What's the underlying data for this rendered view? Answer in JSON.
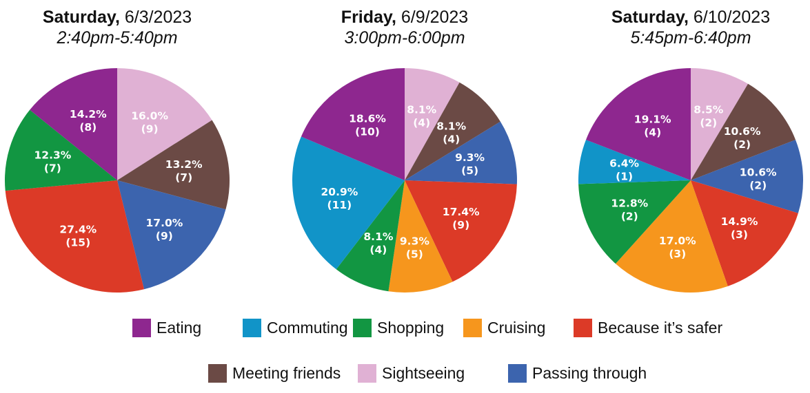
{
  "categories": [
    {
      "key": "eating",
      "name": "Eating",
      "color": "#8E278F"
    },
    {
      "key": "commuting",
      "name": "Commuting",
      "color": "#1194C8"
    },
    {
      "key": "shopping",
      "name": "Shopping",
      "color": "#129642"
    },
    {
      "key": "cruising",
      "name": "Cruising",
      "color": "#F6961D"
    },
    {
      "key": "safer",
      "name": "Because it’s safer",
      "color": "#DC3A27"
    },
    {
      "key": "meeting",
      "name": "Meeting friends",
      "color": "#6B4A45"
    },
    {
      "key": "sightseeing",
      "name": "Sightseeing",
      "color": "#E0B1D4"
    },
    {
      "key": "passing",
      "name": "Passing through",
      "color": "#3C64AE"
    }
  ],
  "chart_data": [
    {
      "type": "pie",
      "title_day": "Saturday,",
      "title_date": " 6/3/2023",
      "subtitle": "2:40pm-5:40pm",
      "slices": [
        {
          "category": "sightseeing",
          "percent": "16.0%",
          "count": "(9)",
          "value": 9
        },
        {
          "category": "meeting",
          "percent": "13.2%",
          "count": "(7)",
          "value": 7
        },
        {
          "category": "passing",
          "percent": "17.0%",
          "count": "(9)",
          "value": 9
        },
        {
          "category": "safer",
          "percent": "27.4%",
          "count": "(15)",
          "value": 15
        },
        {
          "category": "shopping",
          "percent": "12.3%",
          "count": "(7)",
          "value": 7
        },
        {
          "category": "eating",
          "percent": "14.2%",
          "count": "(8)",
          "value": 8
        }
      ]
    },
    {
      "type": "pie",
      "title_day": "Friday,",
      "title_date": " 6/9/2023",
      "subtitle": "3:00pm-6:00pm",
      "slices": [
        {
          "category": "sightseeing",
          "percent": "8.1%",
          "count": "(4)",
          "value": 4
        },
        {
          "category": "meeting",
          "percent": "8.1%",
          "count": "(4)",
          "value": 4
        },
        {
          "category": "passing",
          "percent": "9.3%",
          "count": "(5)",
          "value": 5
        },
        {
          "category": "safer",
          "percent": "17.4%",
          "count": "(9)",
          "value": 9
        },
        {
          "category": "cruising",
          "percent": "9.3%",
          "count": "(5)",
          "value": 5
        },
        {
          "category": "shopping",
          "percent": "8.1%",
          "count": "(4)",
          "value": 4
        },
        {
          "category": "commuting",
          "percent": "20.9%",
          "count": "(11)",
          "value": 11
        },
        {
          "category": "eating",
          "percent": "18.6%",
          "count": "(10)",
          "value": 10
        }
      ]
    },
    {
      "type": "pie",
      "title_day": "Saturday,",
      "title_date": " 6/10/2023",
      "subtitle": "5:45pm-6:40pm",
      "slices": [
        {
          "category": "sightseeing",
          "percent": "8.5%",
          "count": "(2)",
          "value": 2
        },
        {
          "category": "meeting",
          "percent": "10.6%",
          "count": "(2)",
          "value": 2
        },
        {
          "category": "passing",
          "percent": "10.6%",
          "count": "(2)",
          "value": 2
        },
        {
          "category": "safer",
          "percent": "14.9%",
          "count": "(3)",
          "value": 3
        },
        {
          "category": "cruising",
          "percent": "17.0%",
          "count": "(3)",
          "value": 3
        },
        {
          "category": "shopping",
          "percent": "12.8%",
          "count": "(2)",
          "value": 2
        },
        {
          "category": "commuting",
          "percent": "6.4%",
          "count": "(1)",
          "value": 1
        },
        {
          "category": "eating",
          "percent": "19.1%",
          "count": "(4)",
          "value": 4
        }
      ]
    }
  ]
}
